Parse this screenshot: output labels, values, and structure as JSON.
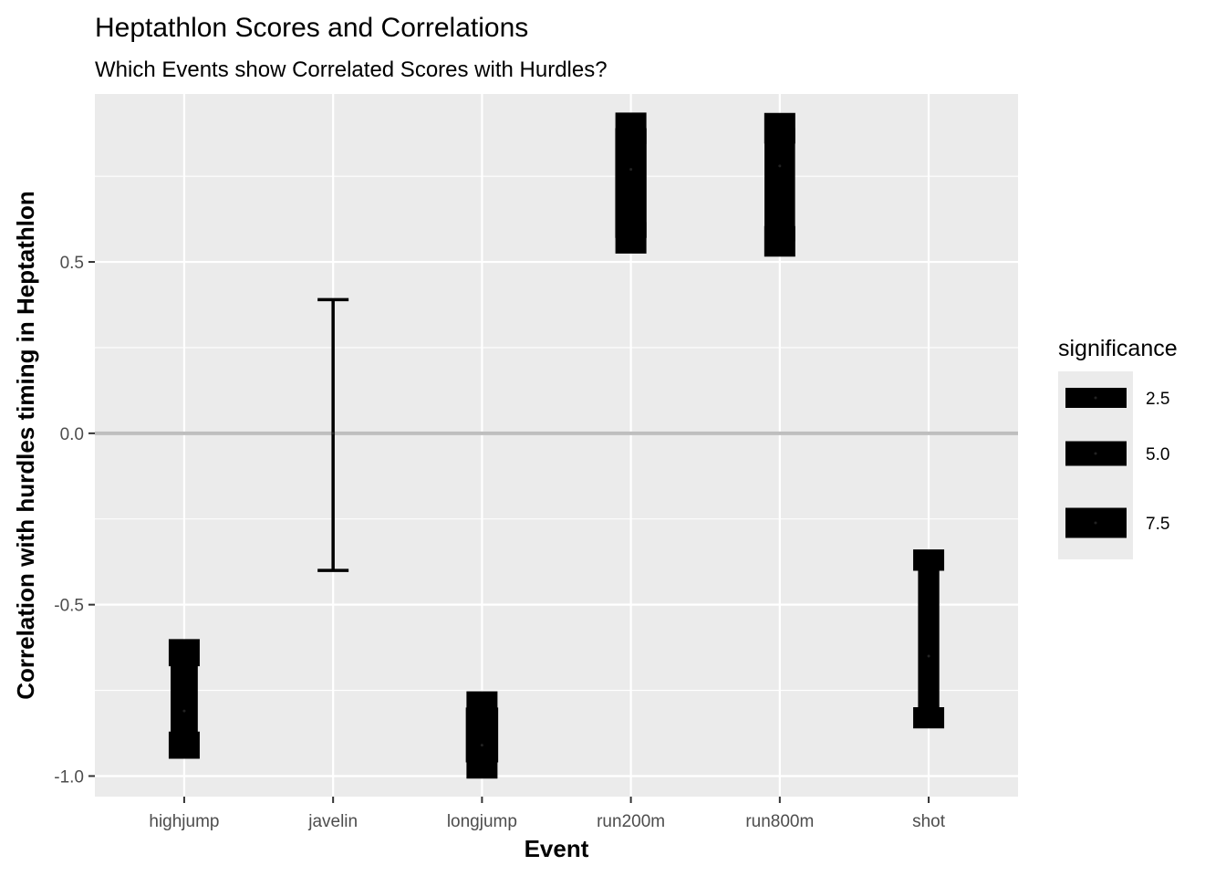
{
  "chart_data": {
    "type": "errorbar",
    "title": "Heptathlon Scores and Correlations",
    "subtitle": "Which Events show Correlated Scores with Hurdles?",
    "xlabel": "Event",
    "ylabel": "Correlation with hurdles timing in Heptathlon",
    "categories": [
      "highjump",
      "javelin",
      "longjump",
      "run200m",
      "run800m",
      "shot"
    ],
    "estimate": [
      -0.81,
      0.0,
      -0.91,
      0.77,
      0.78,
      -0.65
    ],
    "lower": [
      -0.91,
      -0.4,
      -0.96,
      0.57,
      0.56,
      -0.83
    ],
    "upper": [
      -0.64,
      0.39,
      -0.8,
      0.89,
      0.89,
      -0.37
    ],
    "significance": [
      6.9,
      0.0,
      8.4,
      8.1,
      7.9,
      5.2
    ],
    "ylim": [
      -1.06,
      0.99
    ],
    "y_ticks": [
      -1.0,
      -0.5,
      0.0,
      0.5
    ],
    "y_tick_labels": [
      "-1.0",
      "-0.5",
      "0.0",
      "0.5"
    ],
    "hline": 0.0,
    "grid": true,
    "legend": {
      "title": "significance",
      "position": "right",
      "values": [
        2.5,
        5.0,
        7.5
      ],
      "labels": [
        "2.5",
        "5.0",
        "7.5"
      ]
    },
    "colors": {
      "panel": "#ebebeb",
      "grid": "#ffffff",
      "hline": "#bebebe",
      "bar": "#000000"
    }
  }
}
